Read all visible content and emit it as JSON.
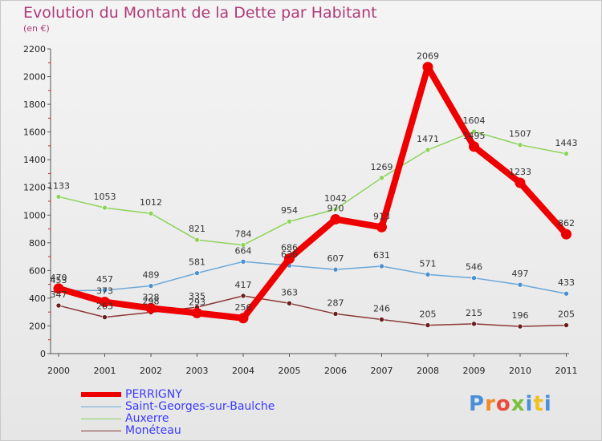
{
  "title": "Evolution du Montant de la Dette par Habitant",
  "subtitle": "(en €)",
  "logo": {
    "text": "Proxiti",
    "colors": [
      "#4a90d9",
      "#f08a24",
      "#e94b3c",
      "#7cbf3c",
      "#4a90d9",
      "#f0c020",
      "#4a90d9"
    ]
  },
  "chart_data": {
    "type": "line",
    "title": "Evolution du Montant de la Dette par Habitant",
    "subtitle": "(en €)",
    "xlabel": "",
    "ylabel": "",
    "ylim": [
      0,
      2200
    ],
    "yticks": [
      0,
      200,
      400,
      600,
      800,
      1000,
      1200,
      1400,
      1600,
      1800,
      2000,
      2200
    ],
    "categories": [
      "2000",
      "2001",
      "2002",
      "2003",
      "2004",
      "2005",
      "2006",
      "2007",
      "2008",
      "2009",
      "2010",
      "2011"
    ],
    "grid": false,
    "legend_position": "bottom-left",
    "series": [
      {
        "name": "Auxerre",
        "color": "#8ed35a",
        "width": 1.5,
        "marker": "#8ed35a",
        "values": [
          1133,
          1053,
          1012,
          821,
          784,
          954,
          1042,
          1269,
          1471,
          1604,
          1507,
          1443
        ],
        "labels": [
          "1133",
          "1053",
          "1012",
          "821",
          "784",
          "954",
          "1042",
          "1269",
          "1471",
          "1604",
          "1507",
          "1443"
        ]
      },
      {
        "name": "Saint-Georges-sur-Baulche",
        "color": "#6aa7d8",
        "width": 1.5,
        "marker": "#4a8fd0",
        "values": [
          453,
          457,
          489,
          581,
          664,
          636,
          607,
          631,
          571,
          546,
          497,
          433
        ],
        "labels": [
          "453",
          "457",
          "489",
          "581",
          "664",
          "636",
          "607",
          "631",
          "571",
          "546",
          "497",
          "433"
        ]
      },
      {
        "name": "Monéteau",
        "color": "#8b3a3a",
        "width": 1.5,
        "marker": "#6b1f1f",
        "values": [
          347,
          263,
          298,
          335,
          417,
          363,
          287,
          246,
          205,
          215,
          196,
          205
        ],
        "labels": [
          "347",
          "263",
          "298",
          "335",
          "417",
          "363",
          "287",
          "246",
          "205",
          "215",
          "196",
          "205"
        ]
      },
      {
        "name": "PERRIGNY",
        "color": "#ee0000",
        "width": 8,
        "marker": "#ee0000",
        "values": [
          470,
          373,
          328,
          293,
          256,
          686,
          970,
          913,
          2069,
          1495,
          1233,
          862
        ],
        "labels": [
          "470",
          "373",
          "328",
          "293",
          "256",
          "686",
          "970",
          "913",
          "2069",
          "1495",
          "1233",
          "862"
        ]
      }
    ]
  },
  "legend": [
    {
      "name": "PERRIGNY",
      "color": "#ee0000",
      "thickness": 6
    },
    {
      "name": "Saint-Georges-sur-Baulche",
      "color": "#6aa7d8",
      "thickness": 1
    },
    {
      "name": "Auxerre",
      "color": "#8ed35a",
      "thickness": 1
    },
    {
      "name": "Monéteau",
      "color": "#8b3a3a",
      "thickness": 1
    }
  ]
}
